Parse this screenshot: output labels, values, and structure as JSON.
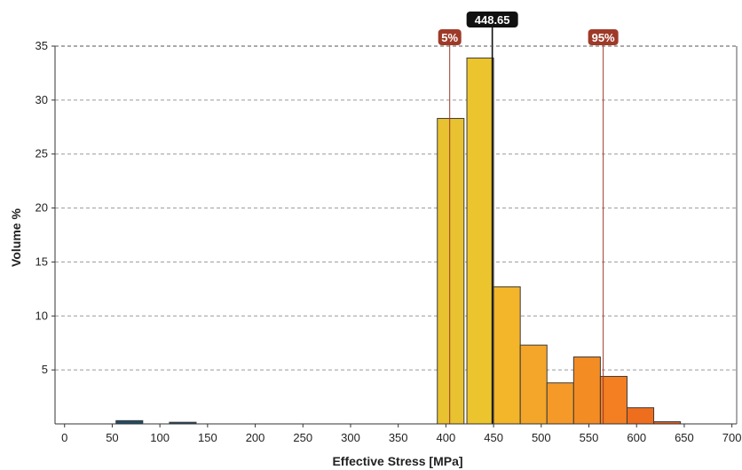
{
  "chart_data": {
    "type": "bar",
    "xlabel": "Effective Stress [MPa]",
    "ylabel": "Volume %",
    "xlim": [
      -10,
      705
    ],
    "ylim": [
      0,
      35
    ],
    "xticks": [
      "0",
      "50",
      "100",
      "150",
      "200",
      "250",
      "300",
      "350",
      "400",
      "450",
      "500",
      "550",
      "600",
      "650",
      "700"
    ],
    "yticks": [
      "5",
      "10",
      "15",
      "20",
      "25",
      "30",
      "35"
    ],
    "grid": true,
    "bin_width": 28,
    "bars": [
      {
        "x": 68,
        "value": 0.3,
        "color": "#1f4e66"
      },
      {
        "x": 124,
        "value": 0.15,
        "color": "#1f4e66"
      },
      {
        "x": 405,
        "value": 28.3,
        "color": "#e8c230"
      },
      {
        "x": 436,
        "value": 33.9,
        "color": "#ecc42e"
      },
      {
        "x": 464,
        "value": 12.7,
        "color": "#f3b52a"
      },
      {
        "x": 492,
        "value": 7.3,
        "color": "#f4a62a"
      },
      {
        "x": 520,
        "value": 3.8,
        "color": "#f59a28"
      },
      {
        "x": 548,
        "value": 6.2,
        "color": "#f48c24"
      },
      {
        "x": 576,
        "value": 4.4,
        "color": "#f37f22"
      },
      {
        "x": 604,
        "value": 1.5,
        "color": "#ef6e1e"
      },
      {
        "x": 632,
        "value": 0.2,
        "color": "#e5601a"
      }
    ],
    "markers": [
      {
        "x": 404,
        "label": "5%",
        "kind": "percentile"
      },
      {
        "x": 448.65,
        "label": "448.65",
        "kind": "median"
      },
      {
        "x": 565,
        "label": "95%",
        "kind": "percentile"
      }
    ],
    "colors": {
      "percentile": "#9e3a28",
      "median": "#111111",
      "grid": "#9a9a9a",
      "bar_outline": "#3a3a3a"
    }
  }
}
